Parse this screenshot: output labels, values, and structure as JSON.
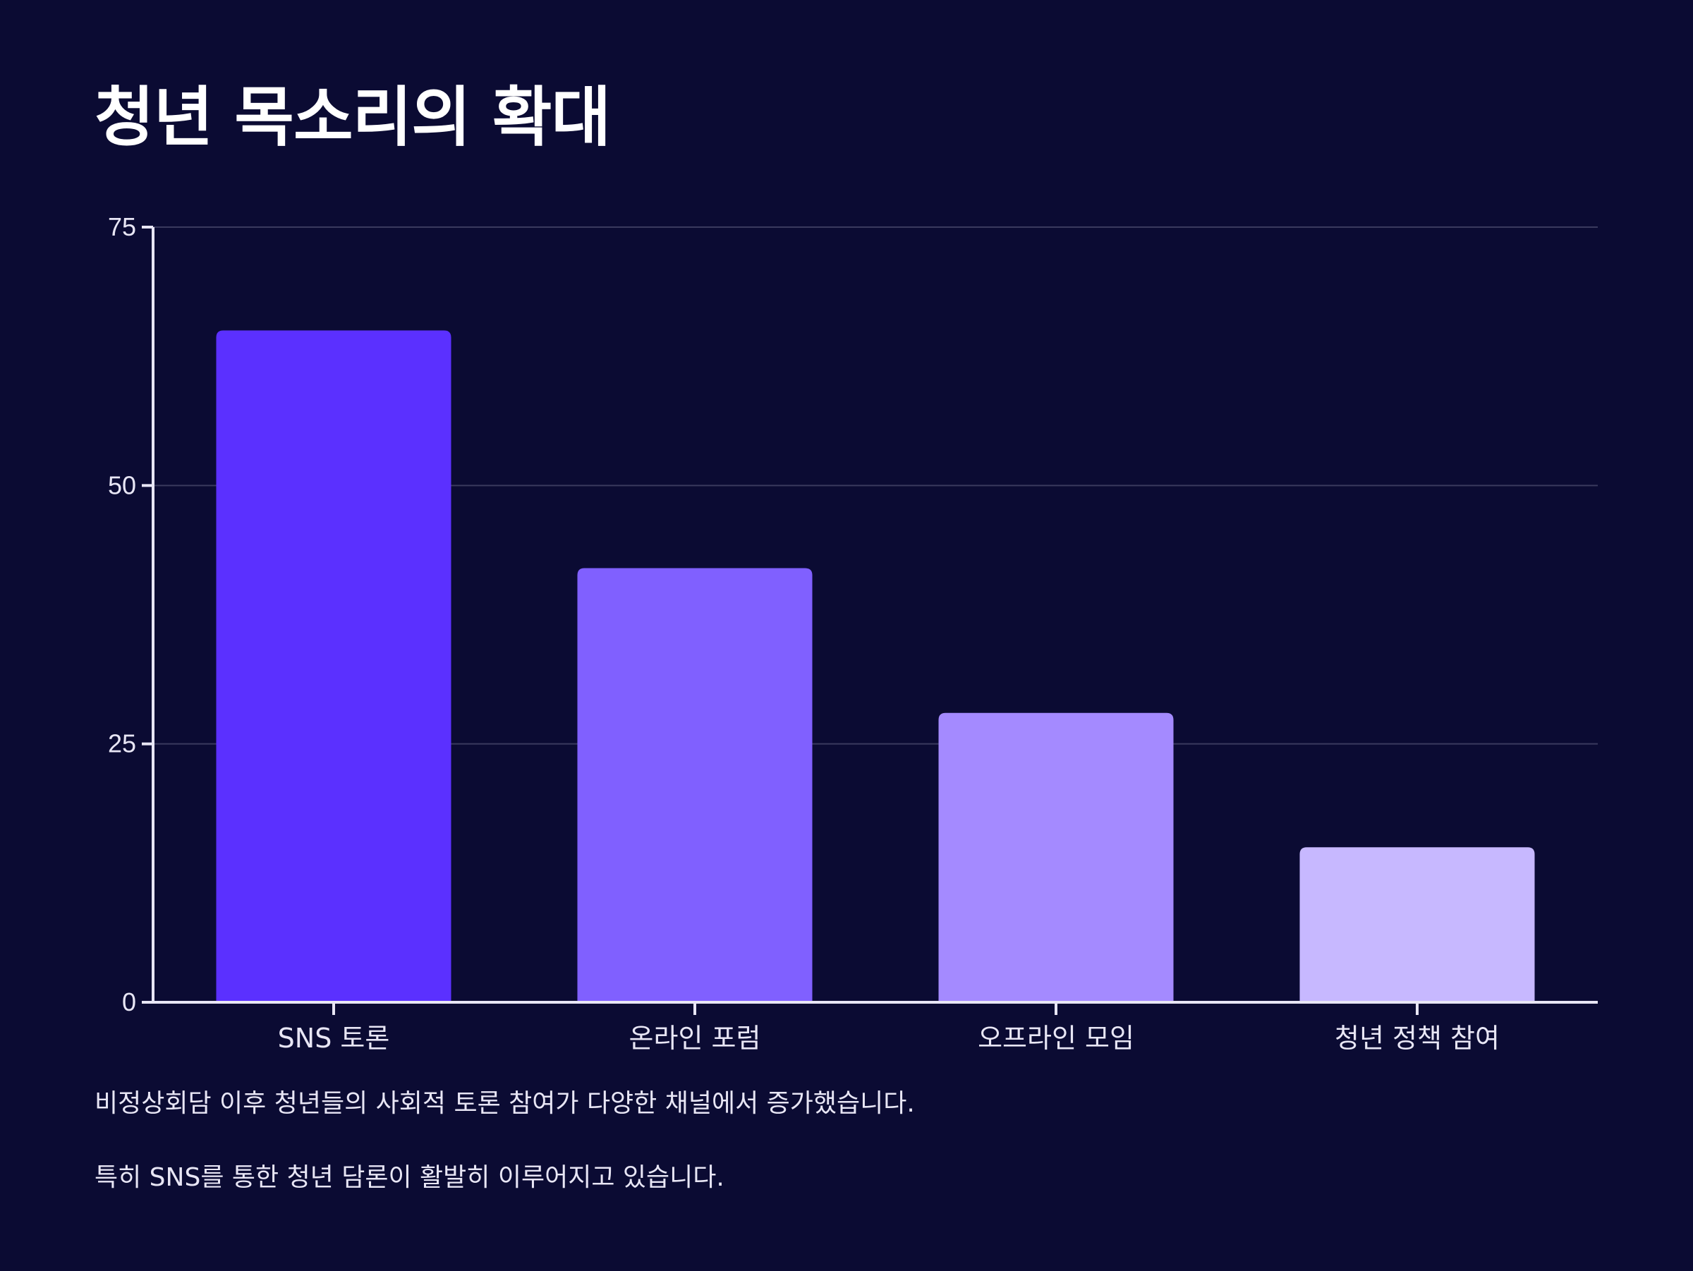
{
  "title": "청년 목소리의 확대",
  "chart_data": {
    "type": "bar",
    "categories": [
      "SNS 토론",
      "온라인 포럼",
      "오프라인 모임",
      "청년 정책 참여"
    ],
    "values": [
      65,
      42,
      28,
      15
    ],
    "ylim": [
      0,
      75
    ],
    "yticks": [
      0,
      25,
      50,
      75
    ],
    "grid": true,
    "colors": [
      "#5b30ff",
      "#8060ff",
      "#a48aff",
      "#c7b8ff"
    ],
    "axis_color": "#e8e6f5",
    "grid_color": "#3a3a5e"
  },
  "description": {
    "line1": "비정상회담 이후 청년들의 사회적 토론 참여가 다양한 채널에서 증가했습니다.",
    "line2": "특히 SNS를 통한 청년 담론이 활발히 이루어지고 있습니다."
  }
}
